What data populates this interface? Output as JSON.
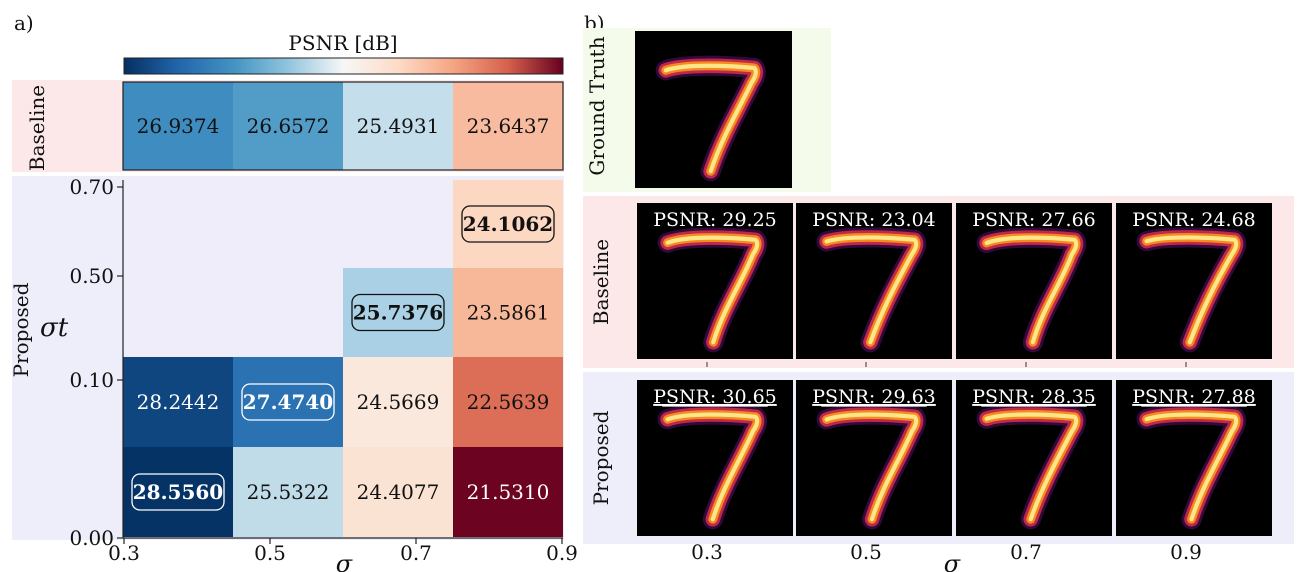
{
  "panel_a": {
    "label": "a)",
    "colorbar_title": "PSNR [dB]",
    "colorbar_range": [
      21.5,
      28.6
    ],
    "baseline_label": "Baseline",
    "proposed_label": "Proposed",
    "ylabel": "σt",
    "xlabel": "σ",
    "x_ticks": [
      "0.3",
      "0.5",
      "0.7",
      "0.9"
    ],
    "y_ticks": [
      "0.70",
      "0.50",
      "0.10",
      "0.00"
    ]
  },
  "panel_b": {
    "label": "b)",
    "ground_truth_label": "Ground Truth",
    "baseline_label": "Baseline",
    "proposed_label": "Proposed",
    "x_ticks": [
      "0.3",
      "0.5",
      "0.7",
      "0.9"
    ],
    "xlabel": "σ",
    "baseline_psnr": [
      "PSNR: 29.25",
      "PSNR: 23.04",
      "PSNR: 27.66",
      "PSNR: 24.68"
    ],
    "proposed_psnr": [
      "PSNR: 30.65",
      "PSNR: 29.63",
      "PSNR: 28.35",
      "PSNR: 27.88"
    ]
  },
  "colors": {
    "baseline_band": "#fce8e8",
    "proposed_band": "#eeeefa",
    "ground_truth_band": "#f4fbea",
    "empty_cell": "#eeedf9"
  },
  "chart_data": {
    "type": "heatmap",
    "title": "PSNR [dB]",
    "xlabel": "σ",
    "ylabel": "σt",
    "x": [
      "0.3",
      "0.5",
      "0.7",
      "0.9"
    ],
    "baseline": [
      {
        "x": "0.3",
        "value": 26.9374,
        "label": "26.9374"
      },
      {
        "x": "0.5",
        "value": 26.6572,
        "label": "26.6572"
      },
      {
        "x": "0.7",
        "value": 25.4931,
        "label": "25.4931"
      },
      {
        "x": "0.9",
        "value": 23.6437,
        "label": "23.6437"
      }
    ],
    "proposed_rows": [
      {
        "sigma_t_range": [
          "0.50",
          "0.70"
        ],
        "cells": [
          {
            "x": "0.3",
            "value": null,
            "label": ""
          },
          {
            "x": "0.5",
            "value": null,
            "label": ""
          },
          {
            "x": "0.7",
            "value": null,
            "label": ""
          },
          {
            "x": "0.9",
            "value": 24.1062,
            "label": "24.1062",
            "best": true
          }
        ]
      },
      {
        "sigma_t_range": [
          "0.10",
          "0.50"
        ],
        "cells": [
          {
            "x": "0.3",
            "value": null,
            "label": ""
          },
          {
            "x": "0.5",
            "value": null,
            "label": ""
          },
          {
            "x": "0.7",
            "value": 25.7376,
            "label": "25.7376",
            "best": true
          },
          {
            "x": "0.9",
            "value": 23.5861,
            "label": "23.5861"
          }
        ]
      },
      {
        "sigma_t_range": [
          "0.00",
          "0.10"
        ],
        "cells": [
          {
            "x": "0.3",
            "value": 28.2442,
            "label": "28.2442"
          },
          {
            "x": "0.5",
            "value": 27.474,
            "label": "27.4740",
            "best": true
          },
          {
            "x": "0.7",
            "value": 24.5669,
            "label": "24.5669"
          },
          {
            "x": "0.9",
            "value": 22.5639,
            "label": "22.5639"
          }
        ]
      },
      {
        "sigma_t_range": [
          "0.00",
          "0.00"
        ],
        "cells": [
          {
            "x": "0.3",
            "value": 28.556,
            "label": "28.5560",
            "best": true
          },
          {
            "x": "0.5",
            "value": 25.5322,
            "label": "25.5322"
          },
          {
            "x": "0.7",
            "value": 24.4077,
            "label": "24.4077"
          },
          {
            "x": "0.9",
            "value": 21.531,
            "label": "21.5310"
          }
        ]
      }
    ]
  }
}
